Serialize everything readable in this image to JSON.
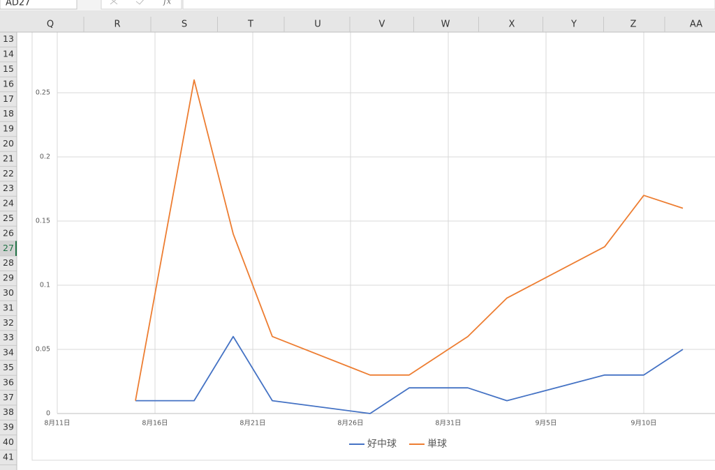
{
  "name_box": "AD27",
  "formula_icon": "fx",
  "columns": [
    "Q",
    "R",
    "S",
    "T",
    "U",
    "V",
    "W",
    "X",
    "Y",
    "Z",
    "AA"
  ],
  "rows": [
    "13",
    "14",
    "15",
    "16",
    "17",
    "18",
    "19",
    "20",
    "21",
    "22",
    "23",
    "24",
    "25",
    "26",
    "27",
    "28",
    "29",
    "30",
    "31",
    "32",
    "33",
    "34",
    "35",
    "36",
    "37",
    "38",
    "39",
    "40",
    "41"
  ],
  "chart_data": {
    "type": "line",
    "x": [
      "8月15日",
      "8月18日",
      "8月20日",
      "8月22日",
      "8月27日",
      "8月29日",
      "9月1日",
      "9月3日",
      "9月8日",
      "9月10日",
      "9月12日"
    ],
    "xlim": [
      "8月11日",
      "9月14日"
    ],
    "xticks": [
      "8月11日",
      "8月16日",
      "8月21日",
      "8月26日",
      "8月31日",
      "9月5日",
      "9月10日"
    ],
    "ylim": [
      0,
      0.3
    ],
    "yticks": [
      0,
      0.05,
      0.1,
      0.15,
      0.2,
      0.25
    ],
    "grid": true,
    "legend": "bottom",
    "series": [
      {
        "name": "好中球",
        "color": "#4472c4",
        "values": [
          0.01,
          0.01,
          0.06,
          0.01,
          0,
          0.02,
          0.02,
          0.01,
          0.03,
          0.03,
          0.05
        ]
      },
      {
        "name": "単球",
        "color": "#ed7d31",
        "values": [
          0.01,
          0.26,
          0.14,
          0.06,
          0.03,
          0.03,
          0.06,
          0.09,
          0.13,
          0.17,
          0.16
        ]
      }
    ]
  }
}
